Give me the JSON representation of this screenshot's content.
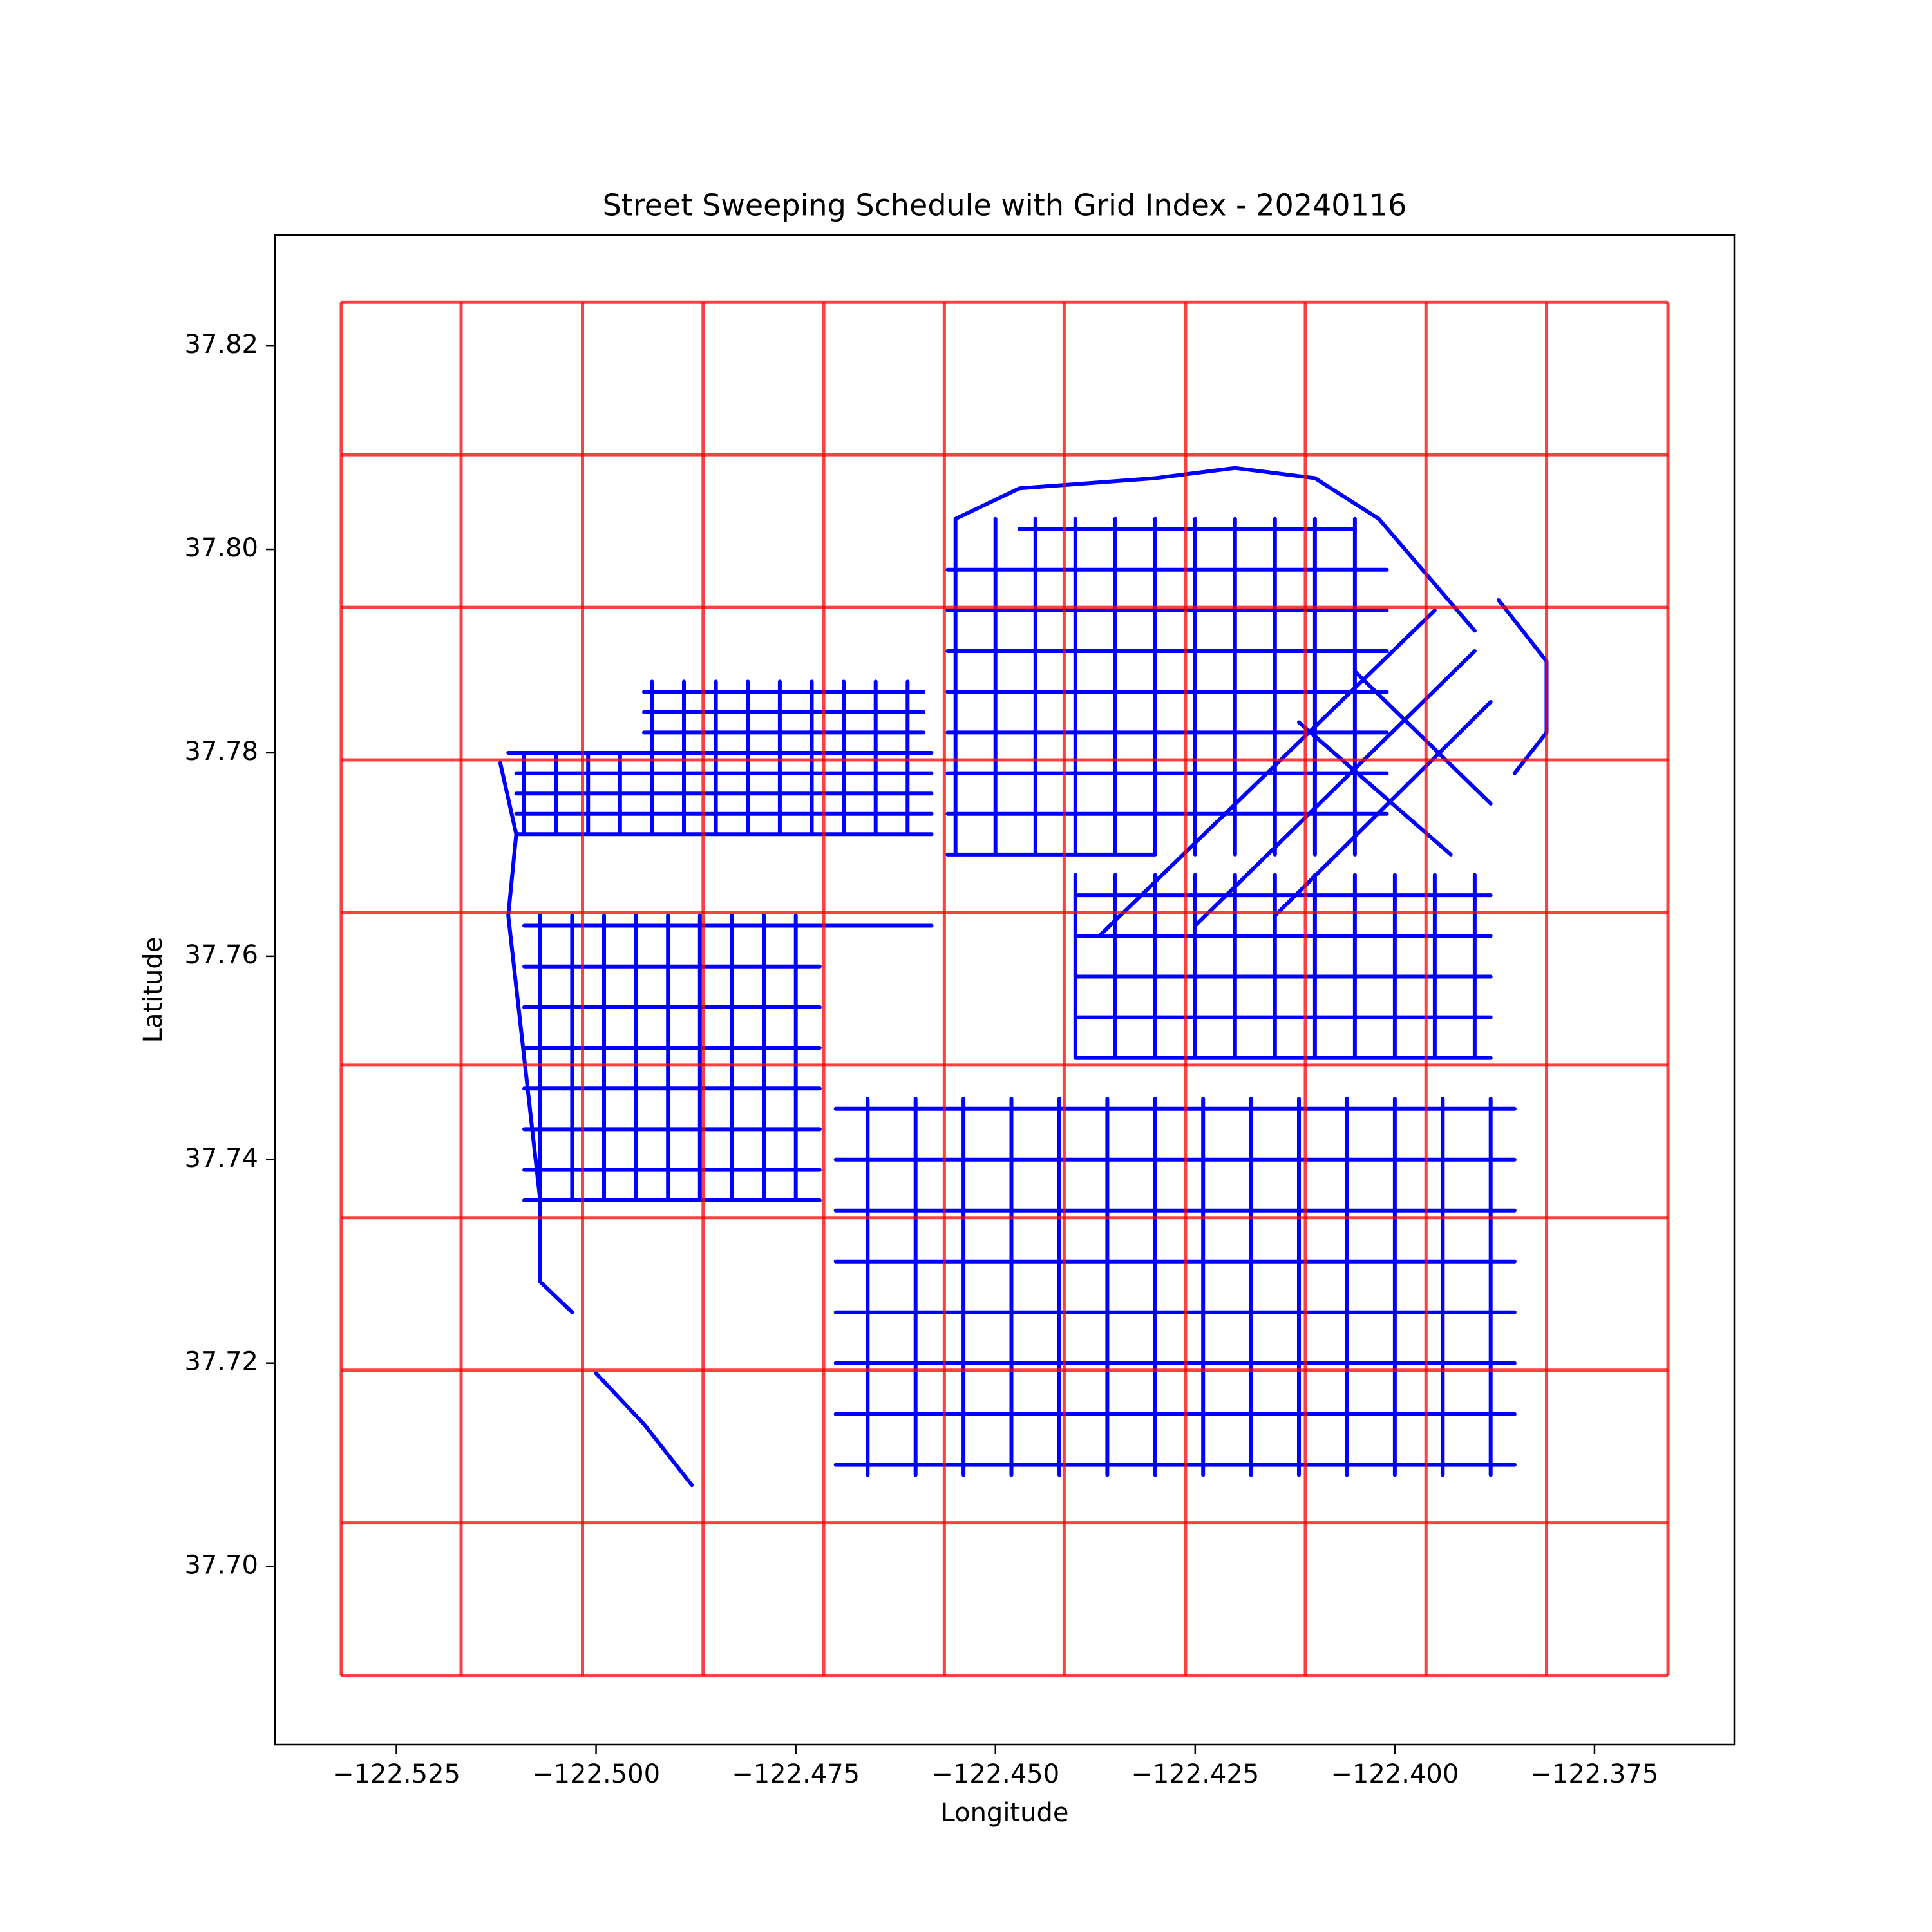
{
  "chart_data": {
    "type": "line",
    "title": "Street Sweeping Schedule with Grid Index - 20240116",
    "x_label": "Longitude",
    "y_label": "Latitude",
    "xlim": [
      -122.5402,
      -122.3575
    ],
    "ylim": [
      37.6825,
      37.8309
    ],
    "xticks": [
      {
        "value": -122.525,
        "label": "−122.525"
      },
      {
        "value": -122.5,
        "label": "−122.500"
      },
      {
        "value": -122.475,
        "label": "−122.475"
      },
      {
        "value": -122.45,
        "label": "−122.450"
      },
      {
        "value": -122.425,
        "label": "−122.425"
      },
      {
        "value": -122.4,
        "label": "−122.400"
      },
      {
        "value": -122.375,
        "label": "−122.375"
      }
    ],
    "yticks": [
      {
        "value": 37.7,
        "label": "37.70"
      },
      37.72,
      37.74,
      37.76,
      37.78,
      {
        "value": 37.8,
        "label": "37.80"
      },
      37.82
    ],
    "grid_color": "#ff0000",
    "grid_lons": [
      -122.5319,
      -122.5169,
      -122.5017,
      -122.4866,
      -122.4715,
      -122.4564,
      -122.4414,
      -122.4262,
      -122.4112,
      -122.3961,
      -122.381,
      -122.3658
    ],
    "grid_lats": [
      37.8243,
      37.8093,
      37.7943,
      37.7793,
      37.7643,
      37.7493,
      37.7343,
      37.7193,
      37.7043,
      37.6893
    ],
    "series": [
      {
        "color": "#0000ff",
        "x": [
          -122.511,
          -122.458,
          null,
          -122.51,
          -122.458,
          null,
          -122.51,
          -122.458,
          null,
          -122.51,
          -122.458,
          null,
          -122.51,
          -122.458,
          null,
          -122.494,
          -122.459,
          null,
          -122.494,
          -122.459,
          null,
          -122.494,
          -122.459,
          null,
          -122.509,
          -122.509,
          null,
          -122.505,
          -122.505,
          null,
          -122.501,
          -122.501,
          null,
          -122.497,
          -122.497,
          null,
          -122.493,
          -122.493,
          null,
          -122.489,
          -122.489,
          null,
          -122.485,
          -122.485,
          null,
          -122.481,
          -122.481,
          null,
          -122.477,
          -122.477,
          null,
          -122.473,
          -122.473,
          null,
          -122.469,
          -122.469,
          null,
          -122.465,
          -122.465,
          null,
          -122.461,
          -122.461,
          null,
          -122.509,
          -122.458,
          null,
          -122.509,
          -122.472,
          null,
          -122.509,
          -122.472,
          null,
          -122.509,
          -122.472,
          null,
          -122.509,
          -122.472,
          null,
          -122.509,
          -122.472,
          null,
          -122.509,
          -122.472,
          null,
          -122.509,
          -122.472,
          null,
          -122.507,
          -122.507,
          null,
          -122.503,
          -122.503,
          null,
          -122.499,
          -122.499,
          null,
          -122.495,
          -122.495,
          null,
          -122.491,
          -122.491,
          null,
          -122.487,
          -122.487,
          null,
          -122.483,
          -122.483,
          null,
          -122.479,
          -122.479,
          null,
          -122.475,
          -122.475,
          null,
          -122.447,
          -122.405,
          null,
          -122.456,
          -122.401,
          null,
          -122.456,
          -122.401,
          null,
          -122.456,
          -122.401,
          null,
          -122.456,
          -122.401,
          null,
          -122.456,
          -122.401,
          null,
          -122.456,
          -122.401,
          null,
          -122.456,
          -122.401,
          null,
          -122.456,
          -122.43,
          null,
          -122.455,
          -122.455,
          null,
          -122.45,
          -122.45,
          null,
          -122.445,
          -122.445,
          null,
          -122.44,
          -122.44,
          null,
          -122.435,
          -122.435,
          null,
          -122.43,
          -122.43,
          null,
          -122.425,
          -122.425,
          null,
          -122.42,
          -122.42,
          null,
          -122.415,
          -122.415,
          null,
          -122.41,
          -122.41,
          null,
          -122.405,
          -122.405,
          null,
          -122.395,
          -122.437,
          null,
          -122.39,
          -122.425,
          null,
          -122.388,
          -122.415,
          null,
          -122.405,
          -122.388,
          null,
          -122.412,
          -122.393,
          null,
          -122.44,
          -122.388,
          null,
          -122.44,
          -122.388,
          null,
          -122.44,
          -122.388,
          null,
          -122.44,
          -122.388,
          null,
          -122.44,
          -122.388,
          null,
          -122.44,
          -122.44,
          null,
          -122.435,
          -122.435,
          null,
          -122.43,
          -122.43,
          null,
          -122.425,
          -122.425,
          null,
          -122.42,
          -122.42,
          null,
          -122.415,
          -122.415,
          null,
          -122.41,
          -122.41,
          null,
          -122.405,
          -122.405,
          null,
          -122.4,
          -122.4,
          null,
          -122.395,
          -122.395,
          null,
          -122.39,
          -122.39,
          null,
          -122.47,
          -122.385,
          null,
          -122.47,
          -122.385,
          null,
          -122.47,
          -122.385,
          null,
          -122.47,
          -122.385,
          null,
          -122.47,
          -122.385,
          null,
          -122.47,
          -122.385,
          null,
          -122.47,
          -122.385,
          null,
          -122.47,
          -122.385,
          null,
          -122.466,
          -122.466,
          null,
          -122.46,
          -122.46,
          null,
          -122.454,
          -122.454,
          null,
          -122.448,
          -122.448,
          null,
          -122.442,
          -122.442,
          null,
          -122.436,
          -122.436,
          null,
          -122.43,
          -122.43,
          null,
          -122.424,
          -122.424,
          null,
          -122.418,
          -122.418,
          null,
          -122.412,
          -122.412,
          null,
          -122.406,
          -122.406,
          null,
          -122.4,
          -122.4,
          null,
          -122.394,
          -122.394,
          null,
          -122.388,
          -122.388,
          null,
          -122.387,
          -122.381,
          -122.381,
          -122.385,
          null,
          -122.512,
          -122.51,
          -122.511,
          -122.507,
          -122.507,
          -122.503,
          null,
          -122.5,
          -122.494,
          -122.488,
          null,
          -122.455,
          -122.447,
          -122.43,
          -122.42,
          -122.41,
          -122.402,
          -122.39
        ],
        "y": [
          37.78,
          37.78,
          null,
          37.778,
          37.778,
          null,
          37.776,
          37.776,
          null,
          37.774,
          37.774,
          null,
          37.772,
          37.772,
          null,
          37.786,
          37.786,
          null,
          37.784,
          37.784,
          null,
          37.782,
          37.782,
          null,
          37.772,
          37.78,
          null,
          37.772,
          37.78,
          null,
          37.772,
          37.78,
          null,
          37.772,
          37.78,
          null,
          37.772,
          37.787,
          null,
          37.772,
          37.787,
          null,
          37.772,
          37.787,
          null,
          37.772,
          37.787,
          null,
          37.772,
          37.787,
          null,
          37.772,
          37.787,
          null,
          37.772,
          37.787,
          null,
          37.772,
          37.787,
          null,
          37.772,
          37.787,
          null,
          37.763,
          37.763,
          null,
          37.759,
          37.759,
          null,
          37.755,
          37.755,
          null,
          37.751,
          37.751,
          null,
          37.747,
          37.747,
          null,
          37.743,
          37.743,
          null,
          37.739,
          37.739,
          null,
          37.736,
          37.736,
          null,
          37.736,
          37.764,
          null,
          37.736,
          37.764,
          null,
          37.736,
          37.764,
          null,
          37.736,
          37.764,
          null,
          37.736,
          37.764,
          null,
          37.736,
          37.764,
          null,
          37.736,
          37.764,
          null,
          37.736,
          37.764,
          null,
          37.736,
          37.764,
          null,
          37.802,
          37.802,
          null,
          37.798,
          37.798,
          null,
          37.794,
          37.794,
          null,
          37.79,
          37.79,
          null,
          37.786,
          37.786,
          null,
          37.782,
          37.782,
          null,
          37.778,
          37.778,
          null,
          37.774,
          37.774,
          null,
          37.77,
          37.77,
          null,
          37.77,
          37.803,
          null,
          37.77,
          37.803,
          null,
          37.77,
          37.803,
          null,
          37.77,
          37.803,
          null,
          37.77,
          37.803,
          null,
          37.77,
          37.803,
          null,
          37.77,
          37.803,
          null,
          37.77,
          37.803,
          null,
          37.77,
          37.803,
          null,
          37.77,
          37.803,
          null,
          37.77,
          37.803,
          null,
          37.794,
          37.762,
          null,
          37.79,
          37.763,
          null,
          37.785,
          37.764,
          null,
          37.788,
          37.775,
          null,
          37.783,
          37.77,
          null,
          37.766,
          37.766,
          null,
          37.762,
          37.762,
          null,
          37.758,
          37.758,
          null,
          37.754,
          37.754,
          null,
          37.75,
          37.75,
          null,
          37.75,
          37.768,
          null,
          37.75,
          37.768,
          null,
          37.75,
          37.768,
          null,
          37.75,
          37.768,
          null,
          37.75,
          37.768,
          null,
          37.75,
          37.768,
          null,
          37.75,
          37.768,
          null,
          37.75,
          37.768,
          null,
          37.75,
          37.768,
          null,
          37.75,
          37.768,
          null,
          37.75,
          37.768,
          null,
          37.745,
          37.745,
          null,
          37.74,
          37.74,
          null,
          37.735,
          37.735,
          null,
          37.73,
          37.73,
          null,
          37.725,
          37.725,
          null,
          37.72,
          37.72,
          null,
          37.715,
          37.715,
          null,
          37.71,
          37.71,
          null,
          37.709,
          37.746,
          null,
          37.709,
          37.746,
          null,
          37.709,
          37.746,
          null,
          37.709,
          37.746,
          null,
          37.709,
          37.746,
          null,
          37.709,
          37.746,
          null,
          37.709,
          37.746,
          null,
          37.709,
          37.746,
          null,
          37.709,
          37.746,
          null,
          37.709,
          37.746,
          null,
          37.709,
          37.746,
          null,
          37.709,
          37.746,
          null,
          37.709,
          37.746,
          null,
          37.709,
          37.746,
          null,
          37.795,
          37.789,
          37.782,
          37.778,
          null,
          37.779,
          37.772,
          37.764,
          37.736,
          37.728,
          37.725,
          null,
          37.719,
          37.714,
          37.708,
          null,
          37.803,
          37.806,
          37.807,
          37.808,
          37.807,
          37.803,
          37.792
        ]
      }
    ]
  }
}
